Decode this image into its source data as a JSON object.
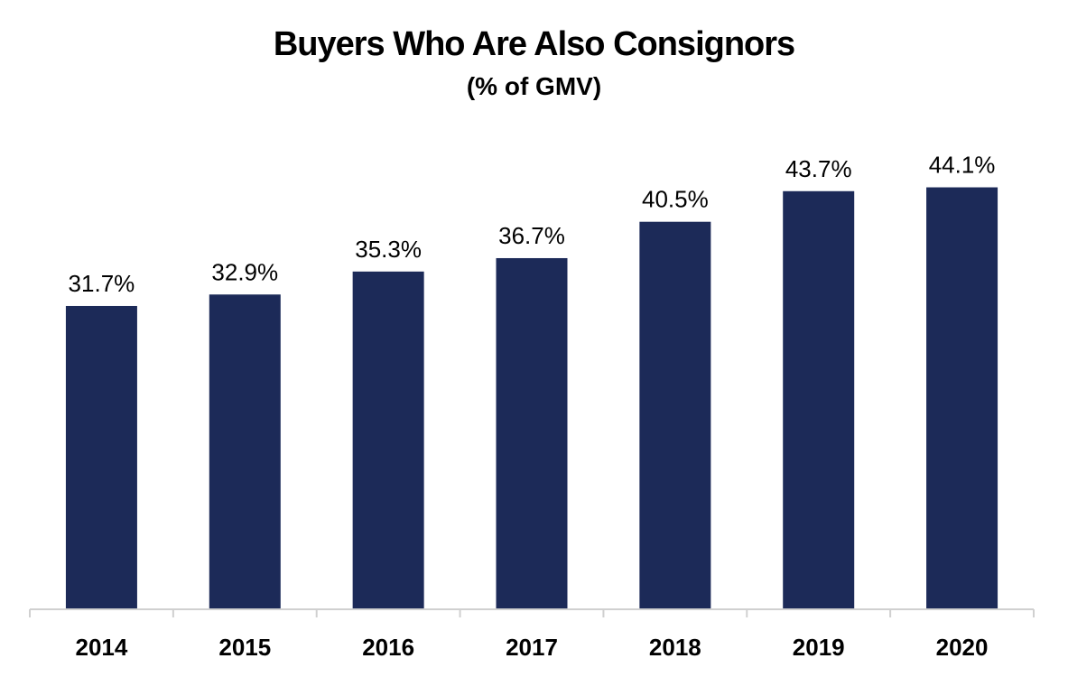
{
  "chart_data": {
    "type": "bar",
    "title": "Buyers Who Are Also Consignors",
    "subtitle": "(% of GMV)",
    "categories": [
      "2014",
      "2015",
      "2016",
      "2017",
      "2018",
      "2019",
      "2020"
    ],
    "values": [
      31.7,
      32.9,
      35.3,
      36.7,
      40.5,
      43.7,
      44.1
    ],
    "data_labels": [
      "31.7%",
      "32.9%",
      "35.3%",
      "36.7%",
      "40.5%",
      "43.7%",
      "44.1%"
    ],
    "xlabel": "",
    "ylabel": "",
    "ylim": [
      0,
      50
    ],
    "grid": false,
    "legend": "none",
    "bar_color": "#1c2a58",
    "axis_color": "#d0d0d0"
  }
}
